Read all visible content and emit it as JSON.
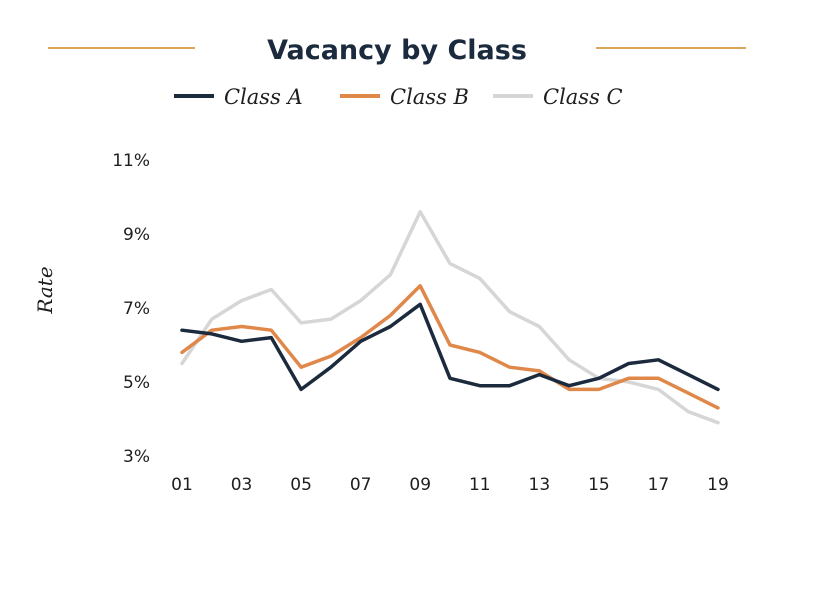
{
  "chart_data": {
    "type": "line",
    "title": "Vacancy by Class",
    "xlabel": "",
    "ylabel": "Rate",
    "x": [
      "01",
      "02",
      "03",
      "04",
      "05",
      "06",
      "07",
      "08",
      "09",
      "10",
      "11",
      "12",
      "13",
      "14",
      "15",
      "16",
      "17",
      "18",
      "19"
    ],
    "x_tick_labels": [
      "01",
      "03",
      "05",
      "07",
      "09",
      "11",
      "13",
      "15",
      "17",
      "19"
    ],
    "y_ticks": [
      3,
      5,
      7,
      9,
      11
    ],
    "y_tick_labels": [
      "3%",
      "5%",
      "7%",
      "9%",
      "11%"
    ],
    "ylim": [
      3,
      11
    ],
    "grid": false,
    "legend_position": "top-center",
    "series": [
      {
        "name": "Class A",
        "color": "#1b2a3d",
        "values": [
          6.4,
          6.3,
          6.1,
          6.2,
          4.8,
          5.4,
          6.1,
          6.5,
          7.1,
          5.1,
          4.9,
          4.9,
          5.2,
          4.9,
          5.1,
          5.5,
          5.6,
          5.2,
          4.8
        ]
      },
      {
        "name": "Class B",
        "color": "#e0874a",
        "values": [
          5.8,
          6.4,
          6.5,
          6.4,
          5.4,
          5.7,
          6.2,
          6.8,
          7.6,
          6.0,
          5.8,
          5.4,
          5.3,
          4.8,
          4.8,
          5.1,
          5.1,
          4.7,
          4.3
        ]
      },
      {
        "name": "Class C",
        "color": "#d6d6d6",
        "values": [
          5.5,
          6.7,
          7.2,
          7.5,
          6.6,
          6.7,
          7.2,
          7.9,
          9.6,
          8.2,
          7.8,
          6.9,
          6.5,
          5.6,
          5.1,
          5.0,
          4.8,
          4.2,
          3.9
        ]
      }
    ],
    "accent_rule_color": "#d9a65a",
    "title_color": "#1b2a3d",
    "text_color": "#1e1e1e"
  }
}
